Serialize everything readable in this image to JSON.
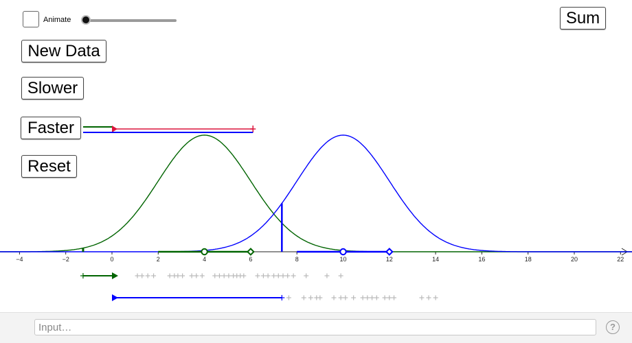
{
  "controls": {
    "animate_label": "Animate",
    "animate_checked": false,
    "speed_slider_fraction": 0.0,
    "buttons": {
      "new_data": "New Data",
      "slower": "Slower",
      "faster": "Faster",
      "reset": "Reset",
      "sum": "Sum"
    }
  },
  "input_bar": {
    "placeholder": "Input…",
    "help_symbol": "?"
  },
  "graph": {
    "x_range": [
      -4.9,
      22.6
    ],
    "x_ticks": [
      "−4",
      "−2",
      "0",
      "2",
      "4",
      "6",
      "8",
      "10",
      "12",
      "14",
      "16",
      "18",
      "20",
      "22"
    ],
    "colors": {
      "green": "#006400",
      "blue": "#0000ff",
      "red": "#dc143c",
      "gray": "#b9b9b9"
    },
    "distributions": [
      {
        "id": "green",
        "mean": 4,
        "sd": 2,
        "marker_circle_x": 4,
        "marker_diamond_x": 6
      },
      {
        "id": "blue",
        "mean": 10,
        "sd": 2,
        "marker_circle_x": 10,
        "marker_diamond_x": 12
      }
    ],
    "current_sum_x": 7.35,
    "green_small_mark_x": -1.25,
    "green_row": {
      "arrow_from": -1.25,
      "arrow_to": 0,
      "gray_marks": [
        1.1,
        1.3,
        1.55,
        1.8,
        2.5,
        2.7,
        2.85,
        3.05,
        3.45,
        3.65,
        3.9,
        4.45,
        4.65,
        4.85,
        5.05,
        5.25,
        5.4,
        5.55,
        5.7,
        6.3,
        6.55,
        6.75,
        7.0,
        7.2,
        7.4,
        7.6,
        7.85,
        8.4,
        9.3,
        9.9
      ]
    },
    "blue_row": {
      "arrow_from": 0,
      "arrow_to": 7.35,
      "gray_marks": [
        7.65,
        8.3,
        8.6,
        8.85,
        9.0,
        9.6,
        9.9,
        10.1,
        10.45,
        10.85,
        11.05,
        11.25,
        11.45,
        11.8,
        12.0,
        12.2,
        13.4,
        13.7,
        14.0
      ]
    },
    "top_bars": {
      "green_to": 0,
      "red_from": 0,
      "red_to": 6.1,
      "blue_to": 6.1
    }
  }
}
